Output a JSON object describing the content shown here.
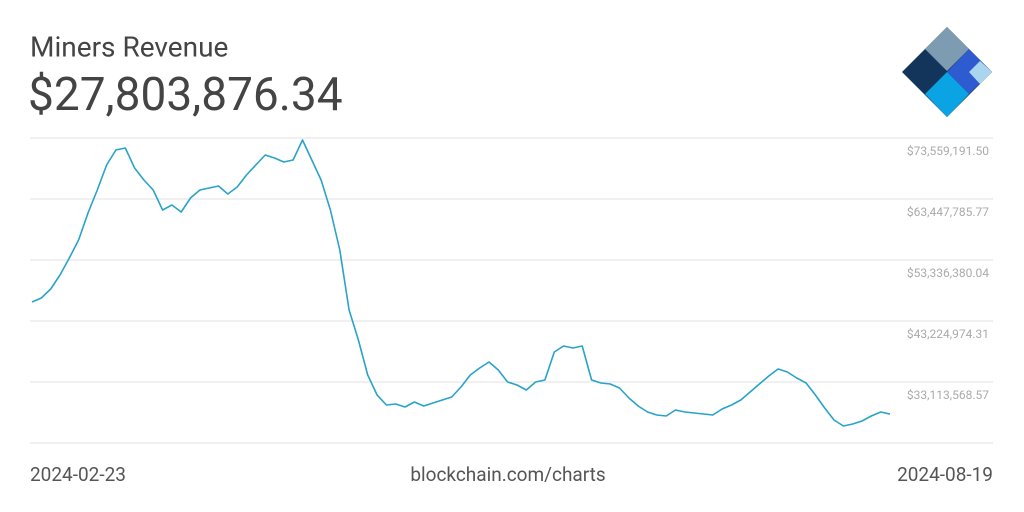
{
  "chart_data": {
    "type": "line",
    "title": "Miners Revenue",
    "subtitle": "$27,803,876.34",
    "source": "blockchain.com/charts",
    "x": [
      "2024-02-23",
      null,
      null,
      null,
      null,
      null,
      null,
      null,
      null,
      null,
      null,
      null,
      null,
      null,
      null,
      null,
      null,
      null,
      null,
      null,
      null,
      null,
      null,
      null,
      null,
      null,
      null,
      null,
      null,
      null,
      null,
      null,
      null,
      null,
      null,
      null,
      null,
      null,
      null,
      null,
      null,
      null,
      null,
      null,
      null,
      null,
      null,
      null,
      null,
      null,
      null,
      null,
      null,
      null,
      null,
      null,
      null,
      null,
      null,
      null,
      null,
      null,
      null,
      null,
      null,
      null,
      null,
      null,
      null,
      null,
      null,
      null,
      null,
      null,
      null,
      null,
      null,
      null,
      null,
      null,
      null,
      null,
      null,
      null,
      null,
      null,
      null,
      null,
      null,
      null,
      null,
      null,
      "2024-08-19"
    ],
    "series": [
      {
        "name": "Miners Revenue",
        "color": "#2aa3c9",
        "values": [
          46380000,
          47040000,
          48530000,
          50850000,
          53670000,
          56650000,
          61130000,
          64940000,
          69080000,
          71570000,
          71900000,
          68590000,
          66600000,
          64940000,
          61630000,
          62450000,
          61290000,
          63610000,
          64940000,
          65270000,
          65600000,
          64280000,
          65440000,
          67430000,
          69080000,
          70740000,
          70240000,
          69580000,
          69910000,
          73230000,
          69910000,
          66600000,
          61630000,
          54990000,
          45050000,
          40080000,
          34270000,
          30960000,
          29300000,
          29470000,
          28970000,
          29800000,
          29140000,
          29630000,
          30130000,
          30630000,
          32290000,
          34270000,
          35440000,
          36430000,
          35100000,
          33110000,
          32620000,
          31790000,
          33110000,
          33450000,
          38090000,
          39080000,
          38750000,
          39080000,
          33450000,
          32950000,
          32780000,
          32120000,
          30460000,
          29140000,
          28140000,
          27640000,
          27480000,
          28470000,
          28140000,
          27980000,
          27810000,
          27640000,
          28640000,
          29300000,
          30130000,
          31460000,
          32780000,
          34110000,
          35270000,
          34770000,
          33780000,
          32950000,
          30960000,
          28800000,
          26820000,
          25820000,
          26150000,
          26650000,
          27480000,
          28140000,
          27800000
        ]
      }
    ],
    "ylim": [
      23002162.84,
      73559191.5
    ],
    "yticks": [
      {
        "value": 73559191.5,
        "label": "$73,559,191.50"
      },
      {
        "value": 63447785.77,
        "label": "$63,447,785.77"
      },
      {
        "value": 53336380.04,
        "label": "$53,336,380.04"
      },
      {
        "value": 43224974.31,
        "label": "$43,224,974.31"
      },
      {
        "value": 33113568.57,
        "label": "$33,113,568.57"
      }
    ],
    "grid": true
  }
}
